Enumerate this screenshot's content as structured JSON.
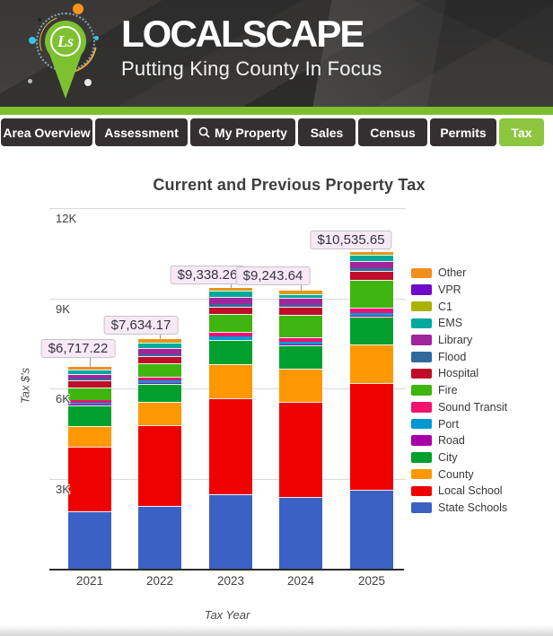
{
  "header": {
    "brand_title": "LOCALSCAPE",
    "brand_subtitle": "Putting King County In Focus",
    "logo_monogram": "Ls"
  },
  "nav": {
    "tabs": [
      {
        "label": "Area Overview",
        "active": false
      },
      {
        "label": "Assessment",
        "active": false
      },
      {
        "label": "My Property",
        "icon": "search",
        "active": false
      },
      {
        "label": "Sales",
        "active": false
      },
      {
        "label": "Census",
        "active": false
      },
      {
        "label": "Permits",
        "active": false
      },
      {
        "label": "Tax",
        "active": true
      }
    ]
  },
  "colors": {
    "accent_green": "#8CC63F",
    "strip_green": "#7DBE30",
    "tab_dark": "#343031",
    "label_box_bg": "#F8E9F4",
    "label_box_border": "#C5C5C5",
    "gridline": "#D9D9D9"
  },
  "chart_data": {
    "type": "bar",
    "stacked": true,
    "title": "Current and Previous Property Tax",
    "xlabel": "Tax Year",
    "ylabel": "Tax $'s",
    "categories": [
      "2021",
      "2022",
      "2023",
      "2024",
      "2025"
    ],
    "totals": [
      6717.22,
      7634.17,
      9338.26,
      9243.64,
      10535.65
    ],
    "total_labels": [
      "$6,717.22",
      "$7,634.17",
      "$9,338.26",
      "$9,243.64",
      "$10,535.65"
    ],
    "ylim": [
      0,
      12000
    ],
    "yticks": [
      {
        "label": "3K",
        "value": 3000
      },
      {
        "label": "6K",
        "value": 6000
      },
      {
        "label": "9K",
        "value": 9000
      },
      {
        "label": "12K",
        "value": 12000
      }
    ],
    "grid": true,
    "legend_position": "right",
    "series": [
      {
        "name": "State Schools",
        "color": "#3C61C4",
        "values": [
          1900,
          2080,
          2480,
          2380,
          2620
        ]
      },
      {
        "name": "Local School",
        "color": "#EE0201",
        "values": [
          2150,
          2680,
          3180,
          3160,
          3560
        ]
      },
      {
        "name": "County",
        "color": "#FD9800",
        "values": [
          700,
          790,
          1140,
          1120,
          1290
        ]
      },
      {
        "name": "City",
        "color": "#009F2E",
        "values": [
          680,
          600,
          800,
          770,
          910
        ]
      },
      {
        "name": "Road",
        "color": "#A800A8",
        "values": [
          18,
          20,
          22,
          22,
          24
        ]
      },
      {
        "name": "Port",
        "color": "#0098D4",
        "values": [
          65,
          90,
          95,
          95,
          100
        ]
      },
      {
        "name": "Sound Transit",
        "color": "#F0136F",
        "values": [
          95,
          120,
          155,
          150,
          185
        ]
      },
      {
        "name": "Fire",
        "color": "#3FB50F",
        "values": [
          430,
          450,
          590,
          760,
          920
        ]
      },
      {
        "name": "Hospital",
        "color": "#C00D29",
        "values": [
          225,
          230,
          250,
          250,
          310
        ]
      },
      {
        "name": "Flood",
        "color": "#2F6A9E",
        "values": [
          60,
          65,
          90,
          65,
          70
        ]
      },
      {
        "name": "Library",
        "color": "#A0269C",
        "values": [
          160,
          215,
          245,
          245,
          250
        ]
      },
      {
        "name": "EMS",
        "color": "#00A99D",
        "values": [
          140,
          190,
          215,
          130,
          215
        ]
      },
      {
        "name": "C1",
        "color": "#AAB300",
        "values": [
          8,
          9,
          10,
          10,
          11
        ]
      },
      {
        "name": "VPR",
        "color": "#7208C8",
        "values": [
          8,
          9,
          10,
          10,
          11
        ]
      },
      {
        "name": "Other",
        "color": "#F28E1E",
        "values": [
          78.22,
          86.17,
          56.26,
          76.64,
          59.65
        ]
      }
    ]
  }
}
